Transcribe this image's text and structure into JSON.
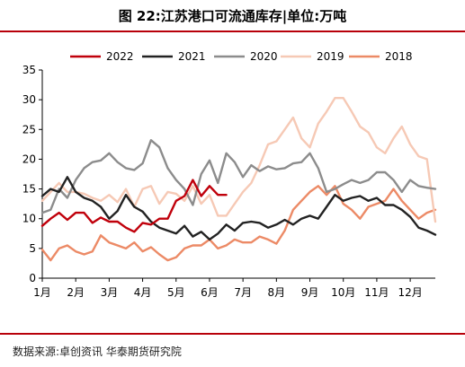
{
  "title": "图 22:江苏港口可流通库存|单位:万吨",
  "source": "数据来源:卓创资讯 华泰期货研究院",
  "chart_data": {
    "type": "line",
    "title": "",
    "xlabel": "",
    "ylabel": "",
    "ylim": [
      0,
      35
    ],
    "yticks": [
      0,
      5,
      10,
      15,
      20,
      25,
      30,
      35
    ],
    "xlim": [
      1,
      12.75
    ],
    "xticks": [
      "1月",
      "2月",
      "3月",
      "4月",
      "5月",
      "6月",
      "7月",
      "8月",
      "9月",
      "10月",
      "11月",
      "12月"
    ],
    "grid": false,
    "legend_position": "top",
    "series": [
      {
        "name": "2022",
        "color": "#c0000b",
        "x": [
          1.0,
          1.25,
          1.5,
          1.75,
          2.0,
          2.25,
          2.5,
          2.75,
          3.0,
          3.25,
          3.5,
          3.75,
          4.0,
          4.25,
          4.5,
          4.75,
          5.0,
          5.25,
          5.5,
          5.75,
          6.0,
          6.25,
          6.5
        ],
        "y": [
          8.8,
          10.0,
          11.0,
          9.8,
          11.0,
          11.0,
          9.3,
          10.2,
          9.5,
          9.5,
          8.5,
          7.8,
          9.3,
          9.0,
          10.0,
          10.0,
          13.0,
          13.8,
          16.5,
          13.8,
          15.5,
          14.0,
          14.0
        ]
      },
      {
        "name": "2021",
        "color": "#222222",
        "x": [
          1.0,
          1.25,
          1.5,
          1.75,
          2.0,
          2.25,
          2.5,
          2.75,
          3.0,
          3.25,
          3.5,
          3.75,
          4.0,
          4.25,
          4.5,
          4.75,
          5.0,
          5.25,
          5.5,
          5.75,
          6.0,
          6.25,
          6.5,
          6.75,
          7.0,
          7.25,
          7.5,
          7.75,
          8.0,
          8.25,
          8.5,
          8.75,
          9.0,
          9.25,
          9.5,
          9.75,
          10.0,
          10.25,
          10.5,
          10.75,
          11.0,
          11.25,
          11.5,
          11.75,
          12.0,
          12.25,
          12.5,
          12.75
        ],
        "y": [
          13.8,
          15.0,
          14.5,
          17.0,
          14.5,
          13.5,
          13.0,
          12.0,
          10.0,
          11.3,
          14.0,
          12.0,
          11.2,
          9.5,
          8.5,
          8.0,
          7.5,
          8.8,
          7.0,
          7.8,
          6.5,
          7.5,
          9.0,
          8.0,
          9.3,
          9.5,
          9.3,
          8.5,
          9.0,
          9.8,
          9.0,
          10.0,
          10.5,
          10.0,
          12.0,
          14.0,
          13.0,
          13.5,
          13.8,
          13.0,
          13.5,
          12.3,
          12.3,
          11.5,
          10.3,
          8.5,
          8.0,
          7.3
        ]
      },
      {
        "name": "2020",
        "color": "#8c8c8c",
        "x": [
          1.0,
          1.25,
          1.5,
          1.75,
          2.0,
          2.25,
          2.5,
          2.75,
          3.0,
          3.25,
          3.5,
          3.75,
          4.0,
          4.25,
          4.5,
          4.75,
          5.0,
          5.25,
          5.5,
          5.75,
          6.0,
          6.25,
          6.5,
          6.75,
          7.0,
          7.25,
          7.5,
          7.75,
          8.0,
          8.25,
          8.5,
          8.75,
          9.0,
          9.25,
          9.5,
          9.75,
          10.0,
          10.25,
          10.5,
          10.75,
          11.0,
          11.25,
          11.5,
          11.75,
          12.0,
          12.25,
          12.5,
          12.75
        ],
        "y": [
          11.0,
          11.5,
          15.0,
          13.5,
          16.5,
          18.5,
          19.5,
          19.8,
          21.0,
          19.5,
          18.5,
          18.2,
          19.3,
          23.2,
          22.0,
          18.5,
          16.5,
          15.0,
          12.3,
          17.5,
          19.8,
          16.0,
          21.0,
          19.5,
          17.0,
          19.0,
          18.0,
          18.8,
          18.3,
          18.5,
          19.3,
          19.5,
          21.0,
          18.5,
          14.5,
          15.0,
          15.8,
          16.5,
          16.0,
          16.5,
          17.8,
          17.8,
          16.5,
          14.5,
          16.5,
          15.5,
          15.2,
          15.0
        ]
      },
      {
        "name": "2019",
        "color": "#f6c9b5",
        "x": [
          1.0,
          1.25,
          1.5,
          1.75,
          2.0,
          2.25,
          2.5,
          2.75,
          3.0,
          3.25,
          3.5,
          3.75,
          4.0,
          4.25,
          4.5,
          4.75,
          5.0,
          5.25,
          5.5,
          5.75,
          6.0,
          6.25,
          6.5,
          6.75,
          7.0,
          7.25,
          7.5,
          7.75,
          8.0,
          8.25,
          8.5,
          8.75,
          9.0,
          9.25,
          9.5,
          9.75,
          10.0,
          10.25,
          10.5,
          10.75,
          11.0,
          11.25,
          11.5,
          11.75,
          12.0,
          12.25,
          12.5,
          12.75
        ],
        "y": [
          13.0,
          14.5,
          16.0,
          14.5,
          14.5,
          14.2,
          13.5,
          13.0,
          14.0,
          12.8,
          15.0,
          12.0,
          15.0,
          15.5,
          12.5,
          14.5,
          14.2,
          13.0,
          15.5,
          12.5,
          14.0,
          10.5,
          10.5,
          12.5,
          14.5,
          16.0,
          19.0,
          22.5,
          23.0,
          25.0,
          27.0,
          23.5,
          22.0,
          26.0,
          28.0,
          30.3,
          30.3,
          28.0,
          25.5,
          24.5,
          22.0,
          21.0,
          23.5,
          25.5,
          22.5,
          20.5,
          20.0,
          9.5
        ]
      },
      {
        "name": "2018",
        "color": "#ec8a66",
        "x": [
          1.0,
          1.25,
          1.5,
          1.75,
          2.0,
          2.25,
          2.5,
          2.75,
          3.0,
          3.25,
          3.5,
          3.75,
          4.0,
          4.25,
          4.5,
          4.75,
          5.0,
          5.25,
          5.5,
          5.75,
          6.0,
          6.25,
          6.5,
          6.75,
          7.0,
          7.25,
          7.5,
          7.75,
          8.0,
          8.25,
          8.5,
          8.75,
          9.0,
          9.25,
          9.5,
          9.75,
          10.0,
          10.25,
          10.5,
          10.75,
          11.0,
          11.25,
          11.5,
          11.75,
          12.0,
          12.25,
          12.5,
          12.75
        ],
        "y": [
          4.8,
          3.0,
          5.0,
          5.5,
          4.5,
          4.0,
          4.5,
          7.2,
          6.0,
          5.5,
          5.0,
          6.0,
          4.5,
          5.2,
          4.0,
          3.0,
          3.5,
          5.0,
          5.5,
          5.5,
          6.5,
          5.0,
          5.5,
          6.5,
          6.0,
          6.0,
          7.0,
          6.5,
          5.8,
          8.0,
          11.5,
          13.0,
          14.5,
          15.5,
          14.0,
          15.5,
          12.5,
          11.5,
          10.0,
          12.0,
          12.5,
          13.0,
          15.0,
          13.0,
          11.5,
          10.0,
          11.0,
          11.5
        ]
      }
    ]
  }
}
